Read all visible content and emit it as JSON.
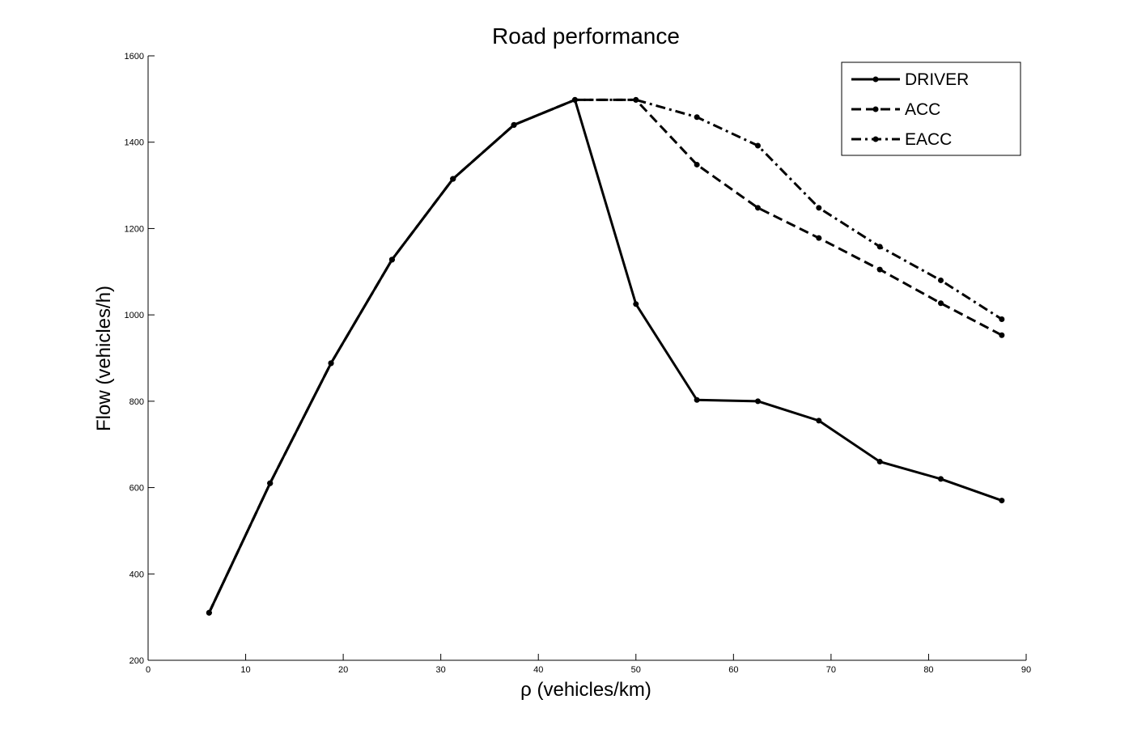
{
  "chart_data": {
    "type": "line",
    "title": "Road performance",
    "xlabel": "ρ (vehicles/km)",
    "ylabel": "Flow (vehicles/h)",
    "xlim": [
      0,
      90
    ],
    "ylim": [
      200,
      1600
    ],
    "xticks": [
      0,
      10,
      20,
      30,
      40,
      50,
      60,
      70,
      80,
      90
    ],
    "yticks": [
      200,
      400,
      600,
      800,
      1000,
      1200,
      1400,
      1600
    ],
    "grid": false,
    "legend_position": "top-right",
    "series": [
      {
        "name": "DRIVER",
        "style": "solid",
        "color": "#000000",
        "x": [
          6.25,
          12.5,
          18.75,
          25,
          31.25,
          37.5,
          43.75,
          50,
          56.25,
          62.5,
          68.75,
          75,
          81.25,
          87.5
        ],
        "y": [
          310,
          610,
          888,
          1128,
          1315,
          1440,
          1498,
          1025,
          803,
          800,
          755,
          660,
          620,
          570
        ]
      },
      {
        "name": "ACC",
        "style": "dashed",
        "color": "#000000",
        "x": [
          6.25,
          12.5,
          18.75,
          25,
          31.25,
          37.5,
          43.75,
          50,
          56.25,
          62.5,
          68.75,
          75,
          81.25,
          87.5
        ],
        "y": [
          310,
          610,
          888,
          1128,
          1315,
          1440,
          1498,
          1498,
          1348,
          1248,
          1178,
          1105,
          1027,
          953
        ]
      },
      {
        "name": "EACC",
        "style": "dashdot",
        "color": "#000000",
        "x": [
          6.25,
          12.5,
          18.75,
          25,
          31.25,
          37.5,
          43.75,
          50,
          56.25,
          62.5,
          68.75,
          75,
          81.25,
          87.5
        ],
        "y": [
          310,
          610,
          888,
          1128,
          1315,
          1440,
          1498,
          1498,
          1458,
          1392,
          1248,
          1158,
          1080,
          990
        ]
      }
    ]
  }
}
